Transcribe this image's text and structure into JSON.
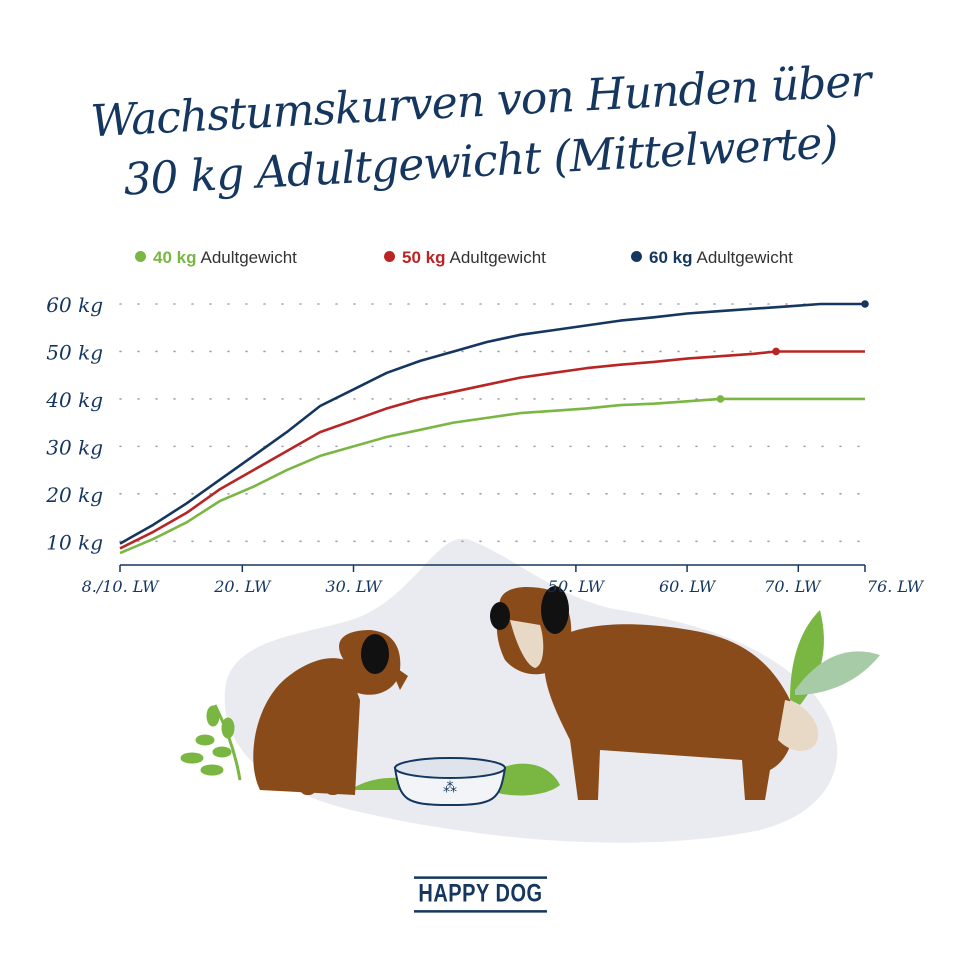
{
  "title_lines": [
    "Wachstumskurven von Hunden über",
    "30 kg Adultgewicht (Mittelwerte)"
  ],
  "legend": [
    {
      "kg": "40 kg",
      "text": "Adultgewicht",
      "color": "#7ab642"
    },
    {
      "kg": "50 kg",
      "text": "Adultgewicht",
      "color": "#b82525"
    },
    {
      "kg": "60 kg",
      "text": "Adultgewicht",
      "color": "#14365f"
    }
  ],
  "logo": "HAPPY DOG",
  "chart_data": {
    "type": "line",
    "title": "Wachstumskurven von Hunden über 30 kg Adultgewicht (Mittelwerte)",
    "xlabel": "",
    "ylabel": "",
    "x_ticks": [
      {
        "value": 9,
        "label": "8./10. LW"
      },
      {
        "value": 20,
        "label": "20. LW"
      },
      {
        "value": 30,
        "label": "30. LW"
      },
      {
        "value": 50,
        "label": "50. LW"
      },
      {
        "value": 60,
        "label": "60. LW"
      },
      {
        "value": 70,
        "label": "70. LW"
      },
      {
        "value": 76,
        "label": "76. LW"
      }
    ],
    "y_ticks": [
      {
        "value": 10,
        "label": "10 kg"
      },
      {
        "value": 20,
        "label": "20 kg"
      },
      {
        "value": 30,
        "label": "30 kg"
      },
      {
        "value": 40,
        "label": "40 kg"
      },
      {
        "value": 50,
        "label": "50 kg"
      },
      {
        "value": 60,
        "label": "60 kg"
      }
    ],
    "xlim": [
      9,
      76
    ],
    "ylim": [
      5,
      60
    ],
    "grid": "dotted horizontal",
    "legend_position": "top",
    "series": [
      {
        "name": "40 kg Adultgewicht",
        "color": "#7ab642",
        "end_marker_x": 63,
        "x": [
          9,
          12,
          15,
          18,
          21,
          24,
          27,
          30,
          33,
          36,
          39,
          42,
          45,
          48,
          51,
          54,
          57,
          60,
          63,
          66,
          69,
          72,
          76
        ],
        "y": [
          7.5,
          10.5,
          14,
          18.5,
          21.5,
          25,
          28,
          30,
          32,
          33.5,
          35,
          36,
          37,
          37.5,
          38,
          38.7,
          39,
          39.5,
          40,
          40,
          40,
          40,
          40
        ]
      },
      {
        "name": "50 kg Adultgewicht",
        "color": "#b82525",
        "end_marker_x": 68,
        "x": [
          9,
          12,
          15,
          18,
          21,
          24,
          27,
          30,
          33,
          36,
          39,
          42,
          45,
          48,
          51,
          54,
          57,
          60,
          63,
          66,
          68,
          72,
          76
        ],
        "y": [
          8.5,
          12,
          16,
          21,
          25,
          29,
          33,
          35.5,
          38,
          40,
          41.5,
          43,
          44.5,
          45.5,
          46.5,
          47.2,
          47.8,
          48.5,
          49,
          49.5,
          50,
          50,
          50
        ]
      },
      {
        "name": "60 kg Adultgewicht",
        "color": "#14365f",
        "end_marker_x": 76,
        "x": [
          9,
          12,
          15,
          18,
          21,
          24,
          27,
          30,
          33,
          36,
          39,
          42,
          45,
          48,
          51,
          54,
          57,
          60,
          63,
          66,
          69,
          72,
          76
        ],
        "y": [
          9.5,
          13.5,
          18,
          23,
          28,
          33,
          38.5,
          42,
          45.5,
          48,
          50,
          52,
          53.5,
          54.5,
          55.5,
          56.5,
          57.2,
          58,
          58.5,
          59,
          59.5,
          60,
          60
        ]
      }
    ]
  }
}
